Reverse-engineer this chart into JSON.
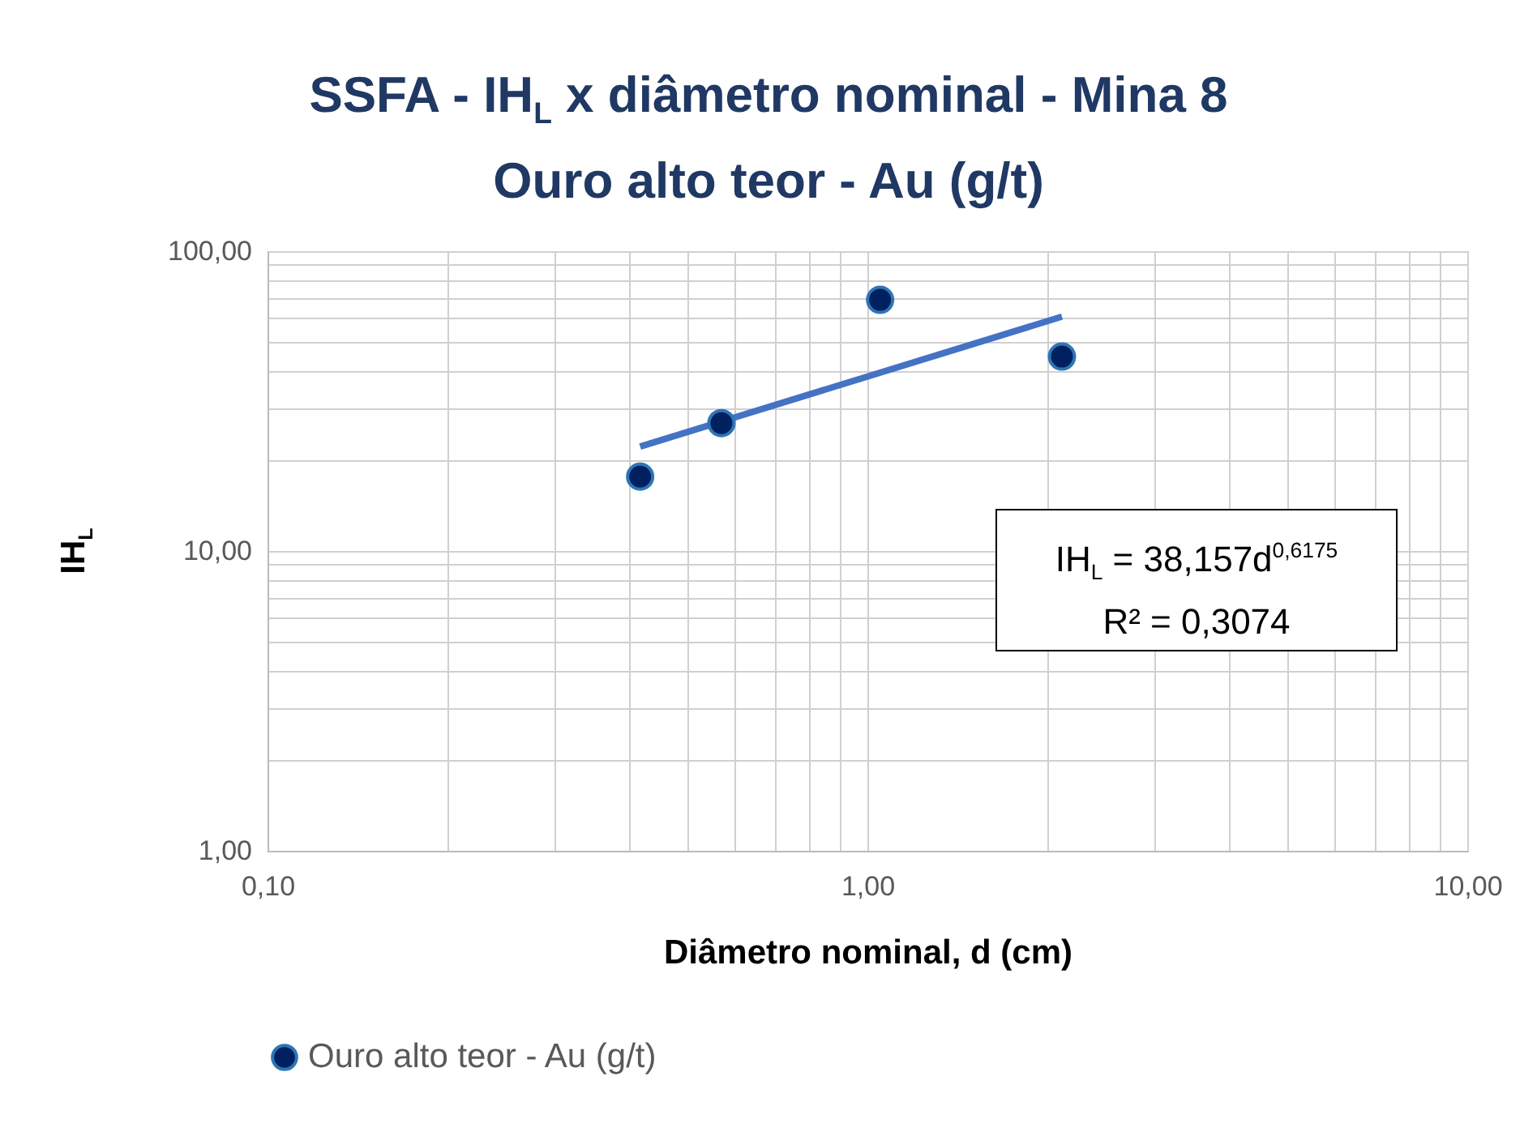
{
  "chart_data": {
    "type": "scatter",
    "title": "SSFA - IH$_{L}$ x diâmetro nominal - Mina 8",
    "subtitle": "Ouro alto teor - Au (g/t)",
    "xlabel": "Diâmetro nominal, d (cm)",
    "ylabel": "IH$_{L}$",
    "annotations": [
      "IH$_{L}$ = 38,157d$^{0,6175}$",
      "R² = 0,3074"
    ],
    "series": [
      {
        "name": "Ouro alto teor - Au (g/t)",
        "marker": "circle",
        "color": "#002060",
        "x": [
          0.418,
          0.571,
          1.05,
          2.11
        ],
        "values": [
          17.7,
          26.7,
          68.8,
          44.5
        ]
      },
      {
        "type": "line",
        "marker": "none",
        "color": "#4472c4",
        "x": [
          0.418,
          2.11
        ],
        "values": [
          22.3,
          60.5
        ]
      }
    ],
    "log": "xy",
    "xlim": [
      0.1,
      10
    ],
    "xticks": [
      {
        "value": 0.1,
        "label": "0,10"
      },
      {
        "value": 0.2,
        "label": null
      },
      {
        "value": 0.3,
        "label": null
      },
      {
        "value": 0.4,
        "label": null
      },
      {
        "value": 0.5,
        "label": null
      },
      {
        "value": 0.6,
        "label": null
      },
      {
        "value": 0.7,
        "label": null
      },
      {
        "value": 0.8,
        "label": null
      },
      {
        "value": 0.9,
        "label": null
      },
      {
        "value": 1,
        "label": "1,00"
      },
      {
        "value": 2,
        "label": null
      },
      {
        "value": 3,
        "label": null
      },
      {
        "value": 4,
        "label": null
      },
      {
        "value": 5,
        "label": null
      },
      {
        "value": 6,
        "label": null
      },
      {
        "value": 7,
        "label": null
      },
      {
        "value": 8,
        "label": null
      },
      {
        "value": 9,
        "label": null
      },
      {
        "value": 10,
        "label": "10,00"
      }
    ],
    "ylim": [
      1,
      100
    ],
    "yticks": [
      {
        "value": 1,
        "label": "1,00"
      },
      {
        "value": 2,
        "label": null
      },
      {
        "value": 3,
        "label": null
      },
      {
        "value": 4,
        "label": null
      },
      {
        "value": 5,
        "label": null
      },
      {
        "value": 6,
        "label": null
      },
      {
        "value": 7,
        "label": null
      },
      {
        "value": 8,
        "label": null
      },
      {
        "value": 9,
        "label": null
      },
      {
        "value": 10,
        "label": "10,00"
      },
      {
        "value": 20,
        "label": null
      },
      {
        "value": 30,
        "label": null
      },
      {
        "value": 40,
        "label": null
      },
      {
        "value": 50,
        "label": null
      },
      {
        "value": 60,
        "label": null
      },
      {
        "value": 70,
        "label": null
      },
      {
        "value": 80,
        "label": null
      },
      {
        "value": 90,
        "label": null
      },
      {
        "value": 100,
        "label": "100,00"
      }
    ],
    "grid": true,
    "legend": "bottom"
  }
}
